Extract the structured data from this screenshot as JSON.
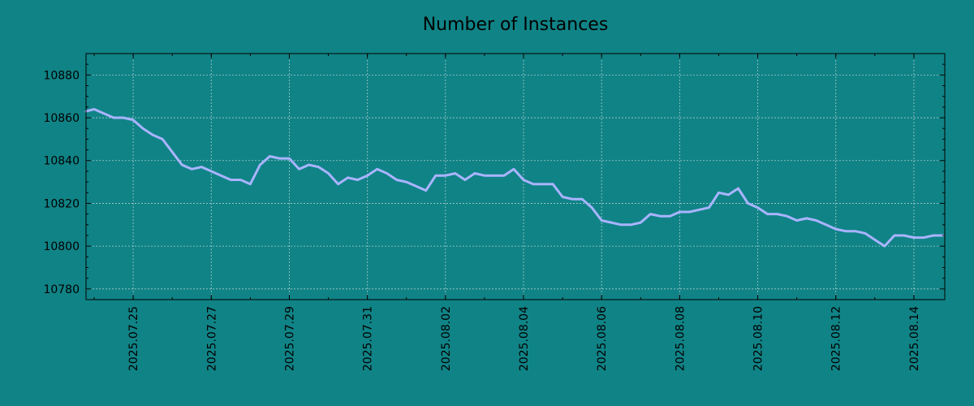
{
  "chart_data": {
    "type": "line",
    "title": "Number of Instances",
    "xlabel": "",
    "ylabel": "",
    "x_range": [
      "2025-07-23T19:00",
      "2025-08-14T19:00"
    ],
    "ylim": [
      10775,
      10890
    ],
    "y_ticks": [
      10780,
      10800,
      10820,
      10840,
      10860,
      10880
    ],
    "x_ticks": [
      "2025.07.25",
      "2025.07.27",
      "2025.07.29",
      "2025.07.31",
      "2025.08.02",
      "2025.08.04",
      "2025.08.06",
      "2025.08.08",
      "2025.08.10",
      "2025.08.12",
      "2025.08.14"
    ],
    "grid": true,
    "line_color": "#a9b4ff",
    "background_color": "#108386",
    "series": [
      {
        "x": [
          "2025-07-23T19:00",
          "2025-07-24T00:00",
          "2025-07-24T06:00",
          "2025-07-24T12:00",
          "2025-07-24T18:00",
          "2025-07-25T00:00",
          "2025-07-25T06:00",
          "2025-07-25T12:00",
          "2025-07-25T18:00",
          "2025-07-26T00:00",
          "2025-07-26T06:00",
          "2025-07-26T12:00",
          "2025-07-26T18:00",
          "2025-07-27T00:00",
          "2025-07-27T06:00",
          "2025-07-27T12:00",
          "2025-07-27T18:00",
          "2025-07-28T00:00",
          "2025-07-28T06:00",
          "2025-07-28T12:00",
          "2025-07-28T18:00",
          "2025-07-29T00:00",
          "2025-07-29T06:00",
          "2025-07-29T12:00",
          "2025-07-29T18:00",
          "2025-07-30T00:00",
          "2025-07-30T06:00",
          "2025-07-30T12:00",
          "2025-07-30T18:00",
          "2025-07-31T00:00",
          "2025-07-31T06:00",
          "2025-07-31T12:00",
          "2025-07-31T18:00",
          "2025-08-01T00:00",
          "2025-08-01T06:00",
          "2025-08-01T12:00",
          "2025-08-01T18:00",
          "2025-08-02T00:00",
          "2025-08-02T06:00",
          "2025-08-02T12:00",
          "2025-08-02T18:00",
          "2025-08-03T00:00",
          "2025-08-03T06:00",
          "2025-08-03T12:00",
          "2025-08-03T18:00",
          "2025-08-04T00:00",
          "2025-08-04T06:00",
          "2025-08-04T12:00",
          "2025-08-04T18:00",
          "2025-08-05T00:00",
          "2025-08-05T06:00",
          "2025-08-05T12:00",
          "2025-08-05T18:00",
          "2025-08-06T00:00",
          "2025-08-06T06:00",
          "2025-08-06T12:00",
          "2025-08-06T18:00",
          "2025-08-07T00:00",
          "2025-08-07T06:00",
          "2025-08-07T12:00",
          "2025-08-07T18:00",
          "2025-08-08T00:00",
          "2025-08-08T06:00",
          "2025-08-08T12:00",
          "2025-08-08T18:00",
          "2025-08-09T00:00",
          "2025-08-09T06:00",
          "2025-08-09T12:00",
          "2025-08-09T18:00",
          "2025-08-10T00:00",
          "2025-08-10T06:00",
          "2025-08-10T12:00",
          "2025-08-10T18:00",
          "2025-08-11T00:00",
          "2025-08-11T06:00",
          "2025-08-11T12:00",
          "2025-08-11T18:00",
          "2025-08-12T00:00",
          "2025-08-12T06:00",
          "2025-08-12T12:00",
          "2025-08-12T18:00",
          "2025-08-13T00:00",
          "2025-08-13T06:00",
          "2025-08-13T12:00",
          "2025-08-13T18:00",
          "2025-08-14T00:00",
          "2025-08-14T06:00",
          "2025-08-14T12:00",
          "2025-08-14T18:00"
        ],
        "values": [
          10863,
          10864,
          10862,
          10860,
          10860,
          10859,
          10855,
          10852,
          10850,
          10844,
          10838,
          10836,
          10837,
          10835,
          10833,
          10831,
          10831,
          10829,
          10838,
          10842,
          10841,
          10841,
          10836,
          10838,
          10837,
          10834,
          10829,
          10832,
          10831,
          10833,
          10836,
          10834,
          10831,
          10830,
          10828,
          10826,
          10833,
          10833,
          10834,
          10831,
          10834,
          10833,
          10833,
          10833,
          10836,
          10831,
          10829,
          10829,
          10829,
          10823,
          10822,
          10822,
          10818,
          10812,
          10811,
          10810,
          10810,
          10811,
          10815,
          10814,
          10814,
          10816,
          10816,
          10817,
          10818,
          10825,
          10824,
          10827,
          10820,
          10818,
          10815,
          10815,
          10814,
          10812,
          10813,
          10812,
          10810,
          10808,
          10807,
          10807,
          10806,
          10803,
          10800,
          10805,
          10805,
          10804,
          10804,
          10805,
          10805
        ]
      }
    ]
  }
}
